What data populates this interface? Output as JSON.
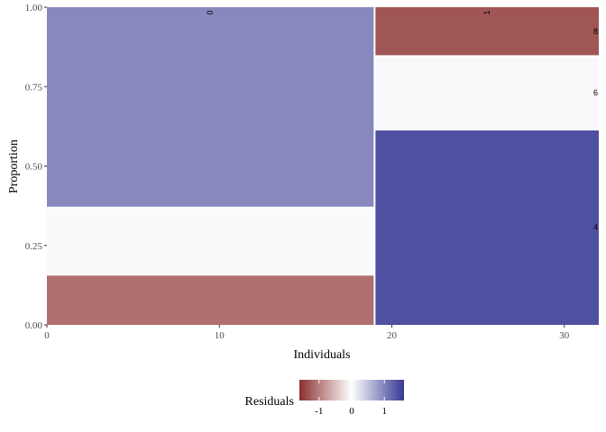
{
  "chart_data": {
    "type": "mosaic",
    "xlabel": "Individuals",
    "ylabel": "Proportion",
    "xlim": [
      0,
      32
    ],
    "ylim": [
      0,
      1
    ],
    "xticks": [
      "0",
      "10",
      "20",
      "30"
    ],
    "yticks": [
      "0.00",
      "0.25",
      "0.50",
      "0.75",
      "1.00"
    ],
    "columns": [
      {
        "label": "0",
        "x_start": 0,
        "x_end": 19,
        "segments": [
          {
            "label": "",
            "proportion": 0.158,
            "residual": -1.1
          },
          {
            "label": "",
            "proportion": 0.211,
            "residual": -0.05
          },
          {
            "label": "",
            "proportion": 0.631,
            "residual": 0.95
          }
        ]
      },
      {
        "label": "1",
        "x_start": 19,
        "x_end": 32,
        "segments": [
          {
            "label": "4",
            "proportion": 0.615,
            "residual": 1.4
          },
          {
            "label": "6",
            "proportion": 0.231,
            "residual": 0.05
          },
          {
            "label": "8",
            "proportion": 0.154,
            "residual": -1.3
          }
        ]
      }
    ],
    "legend": {
      "title": "Residuals",
      "position": "bottom",
      "ticks": [
        "-1",
        "0",
        "1"
      ],
      "tick_values": [
        -1,
        0,
        1
      ],
      "range": [
        -1.6,
        1.6
      ],
      "low_color": "#8b2f2f",
      "mid_color": "#ffffff",
      "high_color": "#373793"
    }
  }
}
